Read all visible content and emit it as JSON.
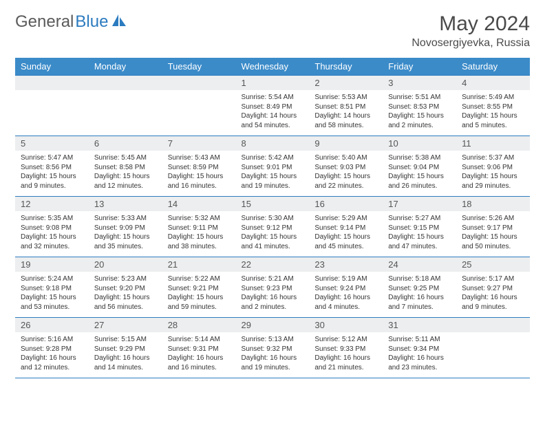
{
  "brand": {
    "part1": "General",
    "part2": "Blue"
  },
  "title": "May 2024",
  "location": "Novosergiyevka, Russia",
  "colors": {
    "header_bg": "#3b8bc9",
    "border": "#2b7bbf",
    "daynum_bg": "#eceeef",
    "text": "#333333",
    "title": "#4a4a4a"
  },
  "font": {
    "family": "Arial",
    "title_size": 30,
    "location_size": 16,
    "header_size": 13,
    "cell_size": 10
  },
  "weekdays": [
    "Sunday",
    "Monday",
    "Tuesday",
    "Wednesday",
    "Thursday",
    "Friday",
    "Saturday"
  ],
  "weeks": [
    [
      null,
      null,
      null,
      {
        "n": "1",
        "sr": "Sunrise: 5:54 AM",
        "ss": "Sunset: 8:49 PM",
        "dl": "Daylight: 14 hours and 54 minutes."
      },
      {
        "n": "2",
        "sr": "Sunrise: 5:53 AM",
        "ss": "Sunset: 8:51 PM",
        "dl": "Daylight: 14 hours and 58 minutes."
      },
      {
        "n": "3",
        "sr": "Sunrise: 5:51 AM",
        "ss": "Sunset: 8:53 PM",
        "dl": "Daylight: 15 hours and 2 minutes."
      },
      {
        "n": "4",
        "sr": "Sunrise: 5:49 AM",
        "ss": "Sunset: 8:55 PM",
        "dl": "Daylight: 15 hours and 5 minutes."
      }
    ],
    [
      {
        "n": "5",
        "sr": "Sunrise: 5:47 AM",
        "ss": "Sunset: 8:56 PM",
        "dl": "Daylight: 15 hours and 9 minutes."
      },
      {
        "n": "6",
        "sr": "Sunrise: 5:45 AM",
        "ss": "Sunset: 8:58 PM",
        "dl": "Daylight: 15 hours and 12 minutes."
      },
      {
        "n": "7",
        "sr": "Sunrise: 5:43 AM",
        "ss": "Sunset: 8:59 PM",
        "dl": "Daylight: 15 hours and 16 minutes."
      },
      {
        "n": "8",
        "sr": "Sunrise: 5:42 AM",
        "ss": "Sunset: 9:01 PM",
        "dl": "Daylight: 15 hours and 19 minutes."
      },
      {
        "n": "9",
        "sr": "Sunrise: 5:40 AM",
        "ss": "Sunset: 9:03 PM",
        "dl": "Daylight: 15 hours and 22 minutes."
      },
      {
        "n": "10",
        "sr": "Sunrise: 5:38 AM",
        "ss": "Sunset: 9:04 PM",
        "dl": "Daylight: 15 hours and 26 minutes."
      },
      {
        "n": "11",
        "sr": "Sunrise: 5:37 AM",
        "ss": "Sunset: 9:06 PM",
        "dl": "Daylight: 15 hours and 29 minutes."
      }
    ],
    [
      {
        "n": "12",
        "sr": "Sunrise: 5:35 AM",
        "ss": "Sunset: 9:08 PM",
        "dl": "Daylight: 15 hours and 32 minutes."
      },
      {
        "n": "13",
        "sr": "Sunrise: 5:33 AM",
        "ss": "Sunset: 9:09 PM",
        "dl": "Daylight: 15 hours and 35 minutes."
      },
      {
        "n": "14",
        "sr": "Sunrise: 5:32 AM",
        "ss": "Sunset: 9:11 PM",
        "dl": "Daylight: 15 hours and 38 minutes."
      },
      {
        "n": "15",
        "sr": "Sunrise: 5:30 AM",
        "ss": "Sunset: 9:12 PM",
        "dl": "Daylight: 15 hours and 41 minutes."
      },
      {
        "n": "16",
        "sr": "Sunrise: 5:29 AM",
        "ss": "Sunset: 9:14 PM",
        "dl": "Daylight: 15 hours and 45 minutes."
      },
      {
        "n": "17",
        "sr": "Sunrise: 5:27 AM",
        "ss": "Sunset: 9:15 PM",
        "dl": "Daylight: 15 hours and 47 minutes."
      },
      {
        "n": "18",
        "sr": "Sunrise: 5:26 AM",
        "ss": "Sunset: 9:17 PM",
        "dl": "Daylight: 15 hours and 50 minutes."
      }
    ],
    [
      {
        "n": "19",
        "sr": "Sunrise: 5:24 AM",
        "ss": "Sunset: 9:18 PM",
        "dl": "Daylight: 15 hours and 53 minutes."
      },
      {
        "n": "20",
        "sr": "Sunrise: 5:23 AM",
        "ss": "Sunset: 9:20 PM",
        "dl": "Daylight: 15 hours and 56 minutes."
      },
      {
        "n": "21",
        "sr": "Sunrise: 5:22 AM",
        "ss": "Sunset: 9:21 PM",
        "dl": "Daylight: 15 hours and 59 minutes."
      },
      {
        "n": "22",
        "sr": "Sunrise: 5:21 AM",
        "ss": "Sunset: 9:23 PM",
        "dl": "Daylight: 16 hours and 2 minutes."
      },
      {
        "n": "23",
        "sr": "Sunrise: 5:19 AM",
        "ss": "Sunset: 9:24 PM",
        "dl": "Daylight: 16 hours and 4 minutes."
      },
      {
        "n": "24",
        "sr": "Sunrise: 5:18 AM",
        "ss": "Sunset: 9:25 PM",
        "dl": "Daylight: 16 hours and 7 minutes."
      },
      {
        "n": "25",
        "sr": "Sunrise: 5:17 AM",
        "ss": "Sunset: 9:27 PM",
        "dl": "Daylight: 16 hours and 9 minutes."
      }
    ],
    [
      {
        "n": "26",
        "sr": "Sunrise: 5:16 AM",
        "ss": "Sunset: 9:28 PM",
        "dl": "Daylight: 16 hours and 12 minutes."
      },
      {
        "n": "27",
        "sr": "Sunrise: 5:15 AM",
        "ss": "Sunset: 9:29 PM",
        "dl": "Daylight: 16 hours and 14 minutes."
      },
      {
        "n": "28",
        "sr": "Sunrise: 5:14 AM",
        "ss": "Sunset: 9:31 PM",
        "dl": "Daylight: 16 hours and 16 minutes."
      },
      {
        "n": "29",
        "sr": "Sunrise: 5:13 AM",
        "ss": "Sunset: 9:32 PM",
        "dl": "Daylight: 16 hours and 19 minutes."
      },
      {
        "n": "30",
        "sr": "Sunrise: 5:12 AM",
        "ss": "Sunset: 9:33 PM",
        "dl": "Daylight: 16 hours and 21 minutes."
      },
      {
        "n": "31",
        "sr": "Sunrise: 5:11 AM",
        "ss": "Sunset: 9:34 PM",
        "dl": "Daylight: 16 hours and 23 minutes."
      },
      null
    ]
  ]
}
